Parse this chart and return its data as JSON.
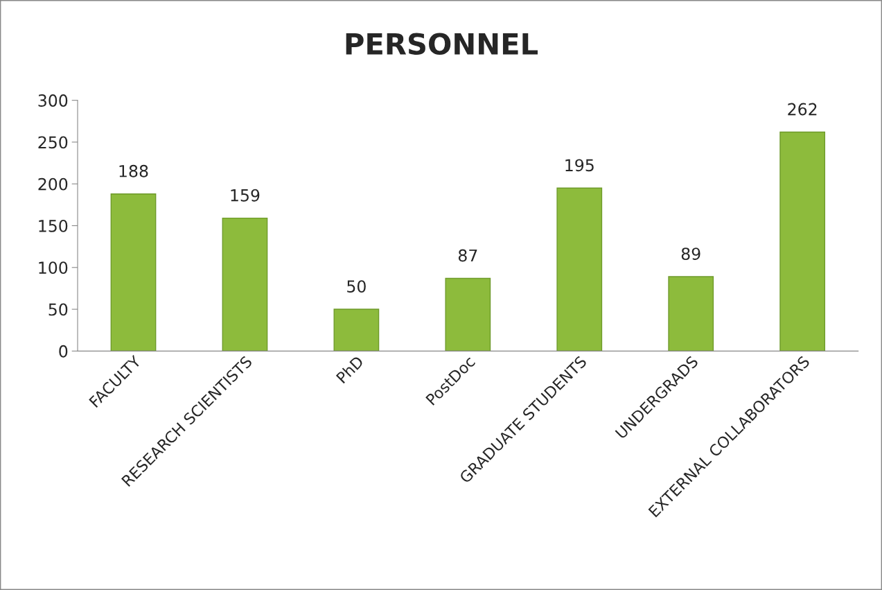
{
  "chart_data": {
    "type": "bar",
    "title": "PERSONNEL",
    "categories": [
      "FACULTY",
      "RESEARCH SCIENTISTS",
      "PhD",
      "PostDoc",
      "GRADUATE STUDENTS",
      "UNDERGRADS",
      "EXTERNAL COLLABORATORS"
    ],
    "values": [
      188,
      159,
      50,
      87,
      195,
      89,
      262
    ],
    "color": "#8dbb3c",
    "ylim": [
      0,
      300
    ],
    "yticks": [
      0,
      50,
      100,
      150,
      200,
      250,
      300
    ],
    "data_labels": true,
    "grid": false,
    "legend": false
  }
}
